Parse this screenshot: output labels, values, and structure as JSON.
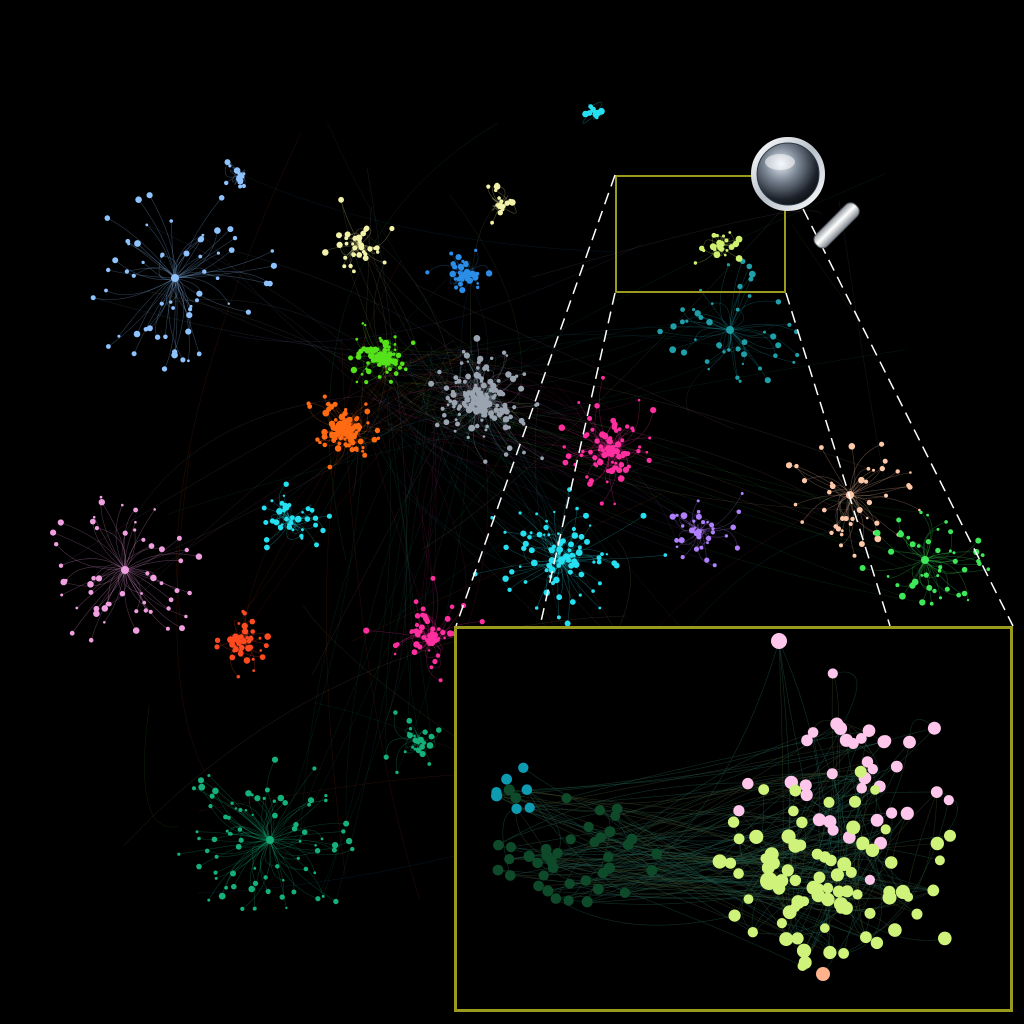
{
  "view": {
    "background": "#000000",
    "inset_border_color": "#9a9a1e",
    "edge_opacity": 0.16
  },
  "clusters": [
    {
      "name": "light-blue-hub",
      "color": "#8fc3ff"
    },
    {
      "name": "pale-yellow-group",
      "color": "#f2f2a8"
    },
    {
      "name": "green-core",
      "color": "#55e21b"
    },
    {
      "name": "orange-core",
      "color": "#ff6a13"
    },
    {
      "name": "grey-core",
      "color": "#9aa4b0"
    },
    {
      "name": "blue-group",
      "color": "#2a8ee8"
    },
    {
      "name": "pink-left-hub",
      "color": "#f0a0e0"
    },
    {
      "name": "teal-bottom-hub",
      "color": "#16b07a"
    },
    {
      "name": "teal-right-group",
      "color": "#1f9fa8"
    },
    {
      "name": "salmon-hub",
      "color": "#ffc8a8"
    },
    {
      "name": "bright-green-hub",
      "color": "#3ee85a"
    },
    {
      "name": "magenta-group",
      "color": "#ff2fa0"
    },
    {
      "name": "cyan-group",
      "color": "#25e0f0"
    },
    {
      "name": "red-orange-group",
      "color": "#ff4a20"
    },
    {
      "name": "yellow-green-zoomed",
      "color": "#d0f070"
    },
    {
      "name": "purple-group",
      "color": "#b080ff"
    }
  ],
  "inset": {
    "node_colors": {
      "pink": "#ffc6ec",
      "yellow_green": "#cef27a",
      "dark_green": "#0e4a2a",
      "teal": "#0e9ab0",
      "salmon": "#ffb28c"
    }
  },
  "magnifier_icon": "magnifying-glass-icon"
}
